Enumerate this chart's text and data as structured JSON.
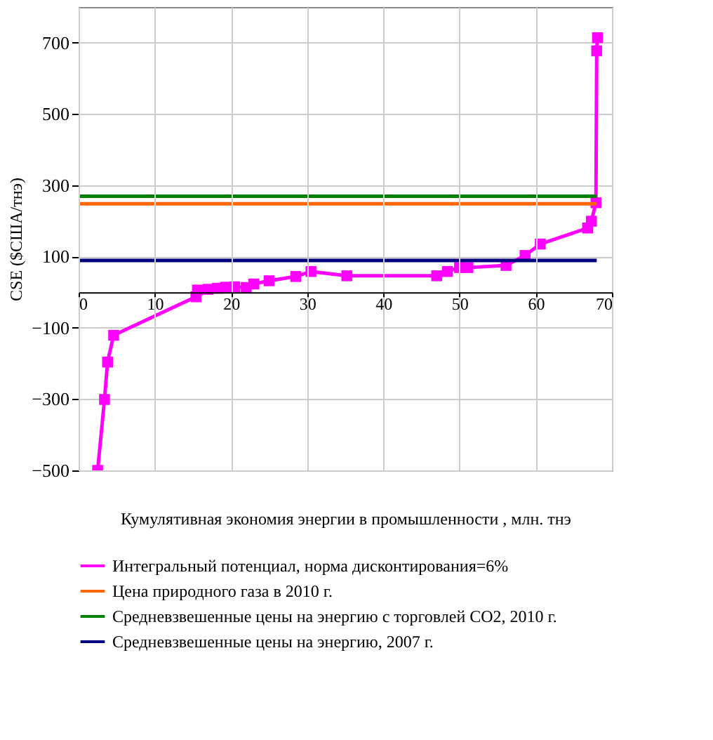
{
  "chart_data": {
    "type": "line",
    "xlabel": "Кумулятивная экономия энергии в промышленности , млн. тнэ",
    "ylabel": "CSE ($США/тнэ)",
    "xlim": [
      0,
      70
    ],
    "xticks": [
      0,
      10,
      20,
      30,
      40,
      50,
      60,
      70
    ],
    "ylim": [
      -500,
      800
    ],
    "yticks": [
      -500,
      -300,
      -100,
      100,
      300,
      500,
      700
    ],
    "grid": true,
    "legend": "bottom",
    "series": [
      {
        "name": "Интегральный потенциал, норма дисконтирования=6%",
        "color": "#ff00ff",
        "marker": "square",
        "x": [
          2.5,
          3.4,
          3.8,
          4.6,
          15.4,
          15.6,
          17,
          18.2,
          19.3,
          20.5,
          22,
          23,
          25,
          28.5,
          30.5,
          35.2,
          47,
          48.4,
          50,
          51.1,
          56.1,
          58.6,
          60.6,
          66.8,
          67.3,
          67.9,
          68,
          68.1
        ],
        "values": [
          -500,
          -301,
          -196,
          -121,
          -13,
          6,
          8,
          11,
          14,
          15,
          13,
          23,
          32,
          44,
          58,
          46,
          46,
          58,
          69,
          69,
          75,
          103,
          135,
          180,
          199,
          251,
          677,
          714
        ]
      },
      {
        "name": "Цена природного газа в 2010 г.",
        "color": "#ff6600",
        "marker": "none",
        "x": [
          0,
          68
        ],
        "values": [
          248,
          248
        ]
      },
      {
        "name": "Средневзвешенные цены на энергию с торговлей CO2, 2010 г.",
        "color": "#008000",
        "marker": "none",
        "x": [
          0,
          68
        ],
        "values": [
          269,
          269
        ]
      },
      {
        "name": "Средневзвешенные цены на энергию, 2007 г.",
        "color": "#000080",
        "marker": "none",
        "x": [
          0,
          68
        ],
        "values": [
          89,
          89
        ]
      }
    ]
  }
}
